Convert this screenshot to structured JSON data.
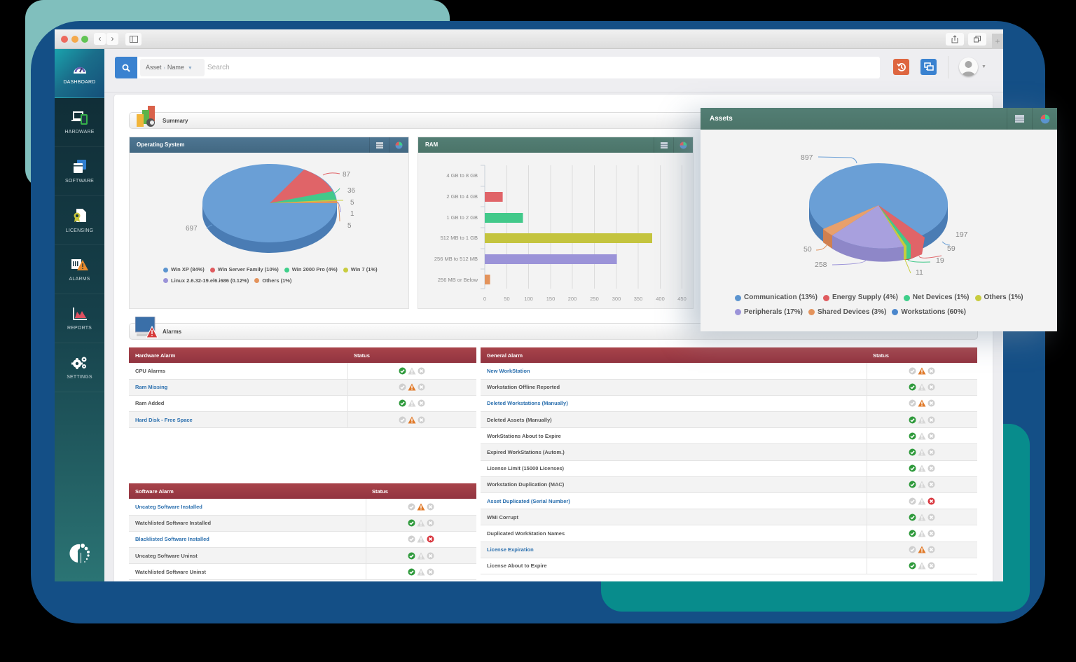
{
  "browser": {
    "back_label": "‹",
    "forward_label": "›",
    "share_icon": "share-icon",
    "tabs_icon": "tabs-icon",
    "new_tab_label": "+"
  },
  "sidebar": {
    "items": [
      {
        "label": "DASHBOARD",
        "icon": "gauge-icon",
        "active": true
      },
      {
        "label": "HARDWARE",
        "icon": "devices-icon"
      },
      {
        "label": "SOFTWARE",
        "icon": "windows-icon"
      },
      {
        "label": "LICENSING",
        "icon": "certificate-icon"
      },
      {
        "label": "ALARMS",
        "icon": "alarm-warning-icon"
      },
      {
        "label": "REPORTS",
        "icon": "area-chart-icon"
      },
      {
        "label": "SETTINGS",
        "icon": "gears-icon"
      }
    ]
  },
  "topbar": {
    "scope_asset": "Asset",
    "scope_sep": "›",
    "scope_name": "Name",
    "search_placeholder": "Search",
    "search_value": ""
  },
  "summary": {
    "title": "Summary"
  },
  "alarms_section": {
    "title": "Alarms"
  },
  "os_panel": {
    "title": "Operating System",
    "legend": [
      {
        "label": "Win XP (84%)",
        "color": "#5b94cf"
      },
      {
        "label": "Win Server Family (10%)",
        "color": "#e05b5f"
      },
      {
        "label": "Win 2000 Pro (4%)",
        "color": "#3ecf8a"
      },
      {
        "label": "Win 7 (1%)",
        "color": "#c8cc3e"
      },
      {
        "label": "Linux 2.6.32-19.el6.i686 (0.12%)",
        "color": "#9b93d8"
      },
      {
        "label": "Others (1%)",
        "color": "#e3935c"
      }
    ],
    "labels": {
      "a": "697",
      "b": "87",
      "c": "36",
      "d": "5",
      "e": "1",
      "f": "5"
    }
  },
  "ram_panel": {
    "title": "RAM",
    "xticks": [
      "0",
      "50",
      "100",
      "150",
      "200",
      "250",
      "300",
      "350",
      "400",
      "450"
    ],
    "categories": [
      "4 GB to 8 GB",
      "2 GB to 4 GB",
      "1 GB to 2 GB",
      "512 MB to 1 GB",
      "256 MB to 512 MB",
      "256 MB or Below"
    ]
  },
  "assets_panel": {
    "title": "Assets",
    "legend": [
      {
        "label": "Communication (13%)",
        "color": "#5b94cf"
      },
      {
        "label": "Energy Supply (4%)",
        "color": "#e05b5f"
      },
      {
        "label": "Net Devices (1%)",
        "color": "#3ecf8a"
      },
      {
        "label": "Others (1%)",
        "color": "#c8cc3e"
      },
      {
        "label": "Peripherals (17%)",
        "color": "#9b93d8"
      },
      {
        "label": "Shared Devices (3%)",
        "color": "#e3935c"
      },
      {
        "label": "Workstations (60%)",
        "color": "#4a86cc"
      }
    ],
    "labels": {
      "a": "897",
      "b": "197",
      "c": "59",
      "d": "19",
      "e": "11",
      "f": "258",
      "g": "50"
    }
  },
  "chart_data": [
    {
      "type": "pie",
      "title": "Operating System",
      "categories": [
        "Win XP",
        "Win Server Family",
        "Win 2000 Pro",
        "Win 7",
        "Linux 2.6.32-19.el6.i686",
        "Others"
      ],
      "values": [
        697,
        87,
        36,
        5,
        1,
        5
      ],
      "percent_labels": [
        "84%",
        "10%",
        "4%",
        "1%",
        "0.12%",
        "1%"
      ],
      "legend_position": "bottom"
    },
    {
      "type": "bar",
      "orientation": "horizontal",
      "title": "RAM",
      "categories": [
        "4 GB to 8 GB",
        "2 GB to 4 GB",
        "1 GB to 2 GB",
        "512 MB to 1 GB",
        "256 MB to 512 MB",
        "256 MB or Below"
      ],
      "values": [
        0,
        41,
        87,
        381,
        301,
        12
      ],
      "xlim": [
        0,
        450
      ],
      "xticks": [
        0,
        50,
        100,
        150,
        200,
        250,
        300,
        350,
        400,
        450
      ],
      "grid": true
    },
    {
      "type": "pie",
      "title": "Assets",
      "categories": [
        "Communication",
        "Energy Supply",
        "Net Devices",
        "Others",
        "Peripherals",
        "Shared Devices",
        "Workstations"
      ],
      "values": [
        197,
        59,
        19,
        11,
        258,
        50,
        897
      ],
      "percent_labels": [
        "13%",
        "4%",
        "1%",
        "1%",
        "17%",
        "3%",
        "60%"
      ],
      "legend_position": "bottom"
    }
  ],
  "hardware_alarm": {
    "header": "Hardware Alarm",
    "status_header": "Status",
    "rows": [
      {
        "label": "CPU Alarms",
        "link": false,
        "status": "ok"
      },
      {
        "label": "Ram Missing",
        "link": true,
        "status": "warn"
      },
      {
        "label": "Ram Added",
        "link": false,
        "status": "ok"
      },
      {
        "label": "Hard Disk - Free Space",
        "link": true,
        "status": "warn"
      }
    ]
  },
  "software_alarm": {
    "header": "Software Alarm",
    "status_header": "Status",
    "rows": [
      {
        "label": "Uncateg Software Installed",
        "link": true,
        "status": "warn"
      },
      {
        "label": "Watchlisted Software Installed",
        "link": false,
        "status": "ok"
      },
      {
        "label": "Blacklisted Software Installed",
        "link": true,
        "status": "error"
      },
      {
        "label": "Uncateg Software Uninst",
        "link": false,
        "status": "ok"
      },
      {
        "label": "Watchlisted Software Uninst",
        "link": false,
        "status": "ok"
      }
    ]
  },
  "general_alarm": {
    "header": "General Alarm",
    "status_header": "Status",
    "rows": [
      {
        "label": "New WorkStation",
        "link": true,
        "status": "warn"
      },
      {
        "label": "Workstation Offline Reported",
        "link": false,
        "status": "ok"
      },
      {
        "label": "Deleted Workstations (Manually)",
        "link": true,
        "status": "warn"
      },
      {
        "label": "Deleted Assets (Manually)",
        "link": false,
        "status": "ok"
      },
      {
        "label": "WorkStations About to Expire",
        "link": false,
        "status": "ok"
      },
      {
        "label": "Expired WorkStations (Autom.)",
        "link": false,
        "status": "ok"
      },
      {
        "label": "License Limit (15000 Licenses)",
        "link": false,
        "status": "ok"
      },
      {
        "label": "Workstation Duplication (MAC)",
        "link": false,
        "status": "ok"
      },
      {
        "label": "Asset Duplicated (Serial Number)",
        "link": true,
        "status": "error"
      },
      {
        "label": "WMI Corrupt",
        "link": false,
        "status": "ok"
      },
      {
        "label": "Duplicated WorkStation Names",
        "link": false,
        "status": "ok"
      },
      {
        "label": "License Expiration",
        "link": true,
        "status": "warn"
      },
      {
        "label": "License About to Expire",
        "link": false,
        "status": "ok"
      }
    ]
  },
  "colors": {
    "accent_blue": "#3a82d0",
    "history_orange": "#de6640",
    "alarm_header_red": "#9b3a44",
    "ok_green": "#2f9a3c",
    "warn_orange": "#e07a2a",
    "error_red": "#d9373f",
    "inactive_gray": "#cfcfcf"
  }
}
